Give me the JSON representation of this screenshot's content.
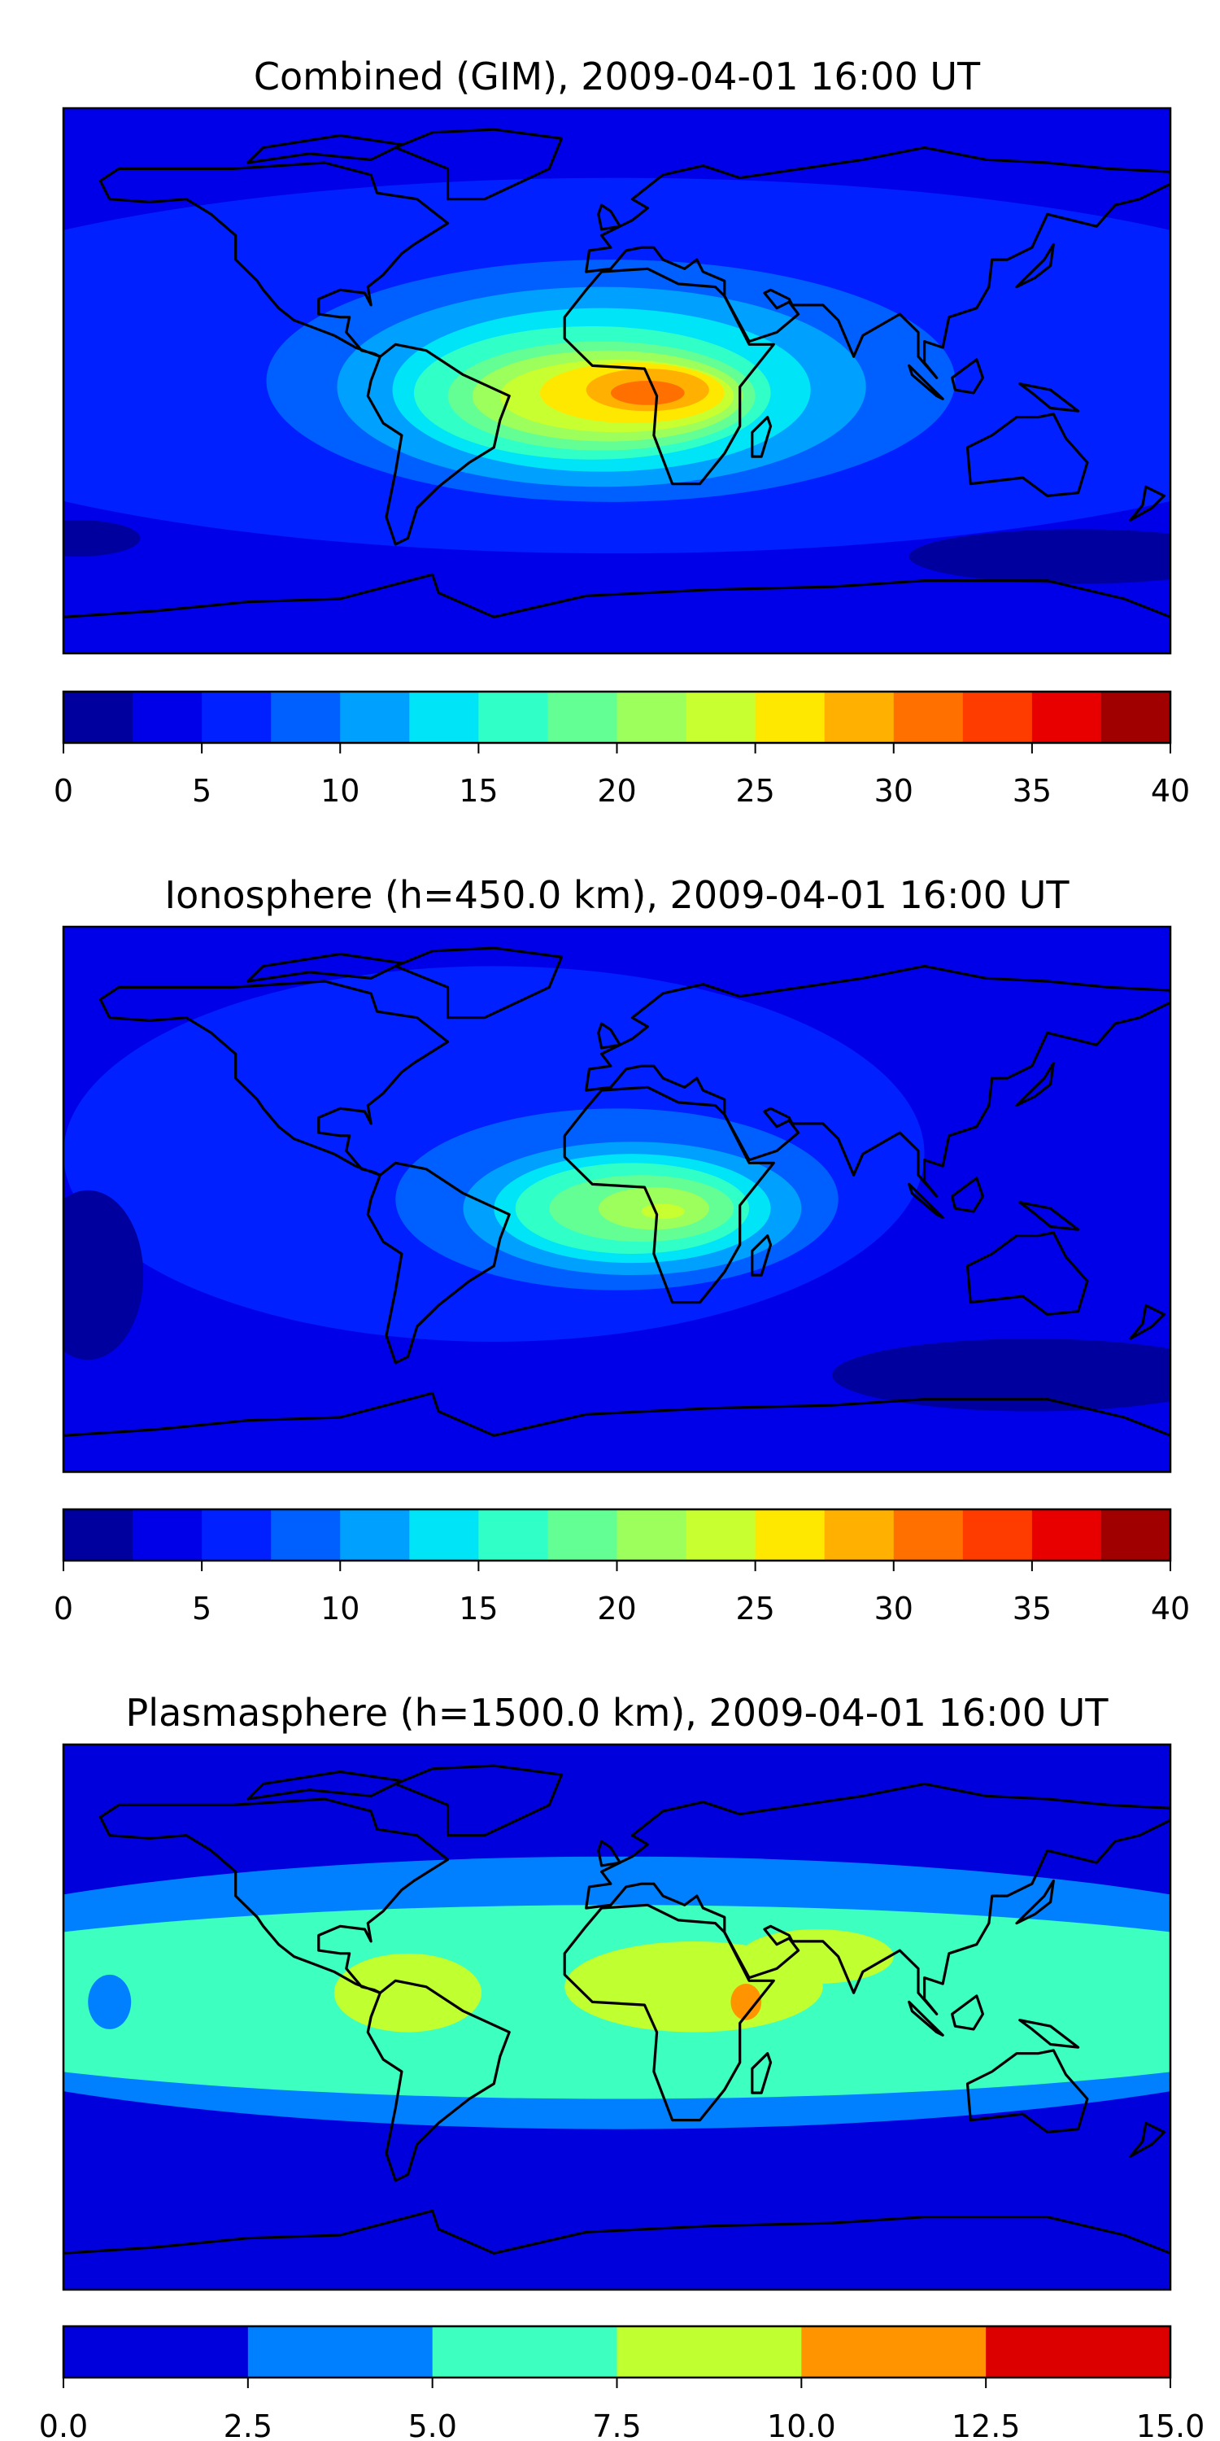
{
  "chart_data": [
    {
      "type": "heatmap",
      "subtype": "filled-contour-map",
      "title": "Combined (GIM), 2009-04-01 16:00 UT",
      "xlim": [
        -180,
        180
      ],
      "ylim": [
        -90,
        90
      ],
      "colorbar": {
        "levels": [
          0,
          2.5,
          5,
          7.5,
          10,
          12.5,
          15,
          17.5,
          20,
          22.5,
          25,
          27.5,
          30,
          32.5,
          35,
          37.5,
          40
        ],
        "colors": [
          "#00009f",
          "#0000e8",
          "#0020ff",
          "#0060ff",
          "#00a0ff",
          "#00e4f8",
          "#30ffc8",
          "#64ff94",
          "#9cff5c",
          "#c8ff30",
          "#ffe800",
          "#ffb000",
          "#ff7000",
          "#ff3c00",
          "#e80000",
          "#a00000"
        ],
        "ticks": [
          "0",
          "5",
          "10",
          "15",
          "20",
          "25",
          "30",
          "35",
          "40"
        ]
      },
      "base_level": 1,
      "regions": [
        {
          "level": 2,
          "lon": 0,
          "lat": 5,
          "rlon": 260,
          "rlat": 62
        },
        {
          "level": 0,
          "lon": 150,
          "lat": -58,
          "rlon": 55,
          "rlat": 9
        },
        {
          "level": 0,
          "lon": -175,
          "lat": -52,
          "rlon": 20,
          "rlat": 6
        },
        {
          "level": 3,
          "lon": -2,
          "lat": 0,
          "rlon": 112,
          "rlat": 40
        },
        {
          "level": 4,
          "lon": -5,
          "lat": -2,
          "rlon": 86,
          "rlat": 33
        },
        {
          "level": 5,
          "lon": -5,
          "lat": -3,
          "rlon": 68,
          "rlat": 27
        },
        {
          "level": 6,
          "lon": -8,
          "lat": -4,
          "rlon": 58,
          "rlat": 22
        },
        {
          "level": 7,
          "lon": -5,
          "lat": -5,
          "rlon": 50,
          "rlat": 18
        },
        {
          "level": 8,
          "lon": -3,
          "lat": -5,
          "rlon": 44,
          "rlat": 15
        },
        {
          "level": 9,
          "lon": 0,
          "lat": -5,
          "rlon": 38,
          "rlat": 12
        },
        {
          "level": 10,
          "lon": 5,
          "lat": -4,
          "rlon": 30,
          "rlat": 10
        },
        {
          "level": 11,
          "lon": 10,
          "lat": -3,
          "rlon": 20,
          "rlat": 7
        },
        {
          "level": 12,
          "lon": 10,
          "lat": -4,
          "rlon": 12,
          "rlat": 4
        }
      ]
    },
    {
      "type": "heatmap",
      "subtype": "filled-contour-map",
      "title": "Ionosphere  (h=450.0 km), 2009-04-01 16:00 UT",
      "xlim": [
        -180,
        180
      ],
      "ylim": [
        -90,
        90
      ],
      "colorbar": {
        "levels": [
          0,
          2.5,
          5,
          7.5,
          10,
          12.5,
          15,
          17.5,
          20,
          22.5,
          25,
          27.5,
          30,
          32.5,
          35,
          37.5,
          40
        ],
        "colors": [
          "#00009f",
          "#0000e8",
          "#0020ff",
          "#0060ff",
          "#00a0ff",
          "#00e4f8",
          "#30ffc8",
          "#64ff94",
          "#9cff5c",
          "#c8ff30",
          "#ffe800",
          "#ffb000",
          "#ff7000",
          "#ff3c00",
          "#e80000",
          "#a00000"
        ],
        "ticks": [
          "0",
          "5",
          "10",
          "15",
          "20",
          "25",
          "30",
          "35",
          "40"
        ]
      },
      "base_level": 1,
      "regions": [
        {
          "level": 2,
          "lon": -40,
          "lat": 15,
          "rlon": 140,
          "rlat": 62
        },
        {
          "level": 0,
          "lon": 135,
          "lat": -58,
          "rlon": 65,
          "rlat": 12
        },
        {
          "level": 0,
          "lon": -172,
          "lat": -25,
          "rlon": 18,
          "rlat": 28
        },
        {
          "level": 3,
          "lon": 0,
          "lat": 0,
          "rlon": 72,
          "rlat": 30
        },
        {
          "level": 4,
          "lon": 5,
          "lat": -3,
          "rlon": 55,
          "rlat": 22
        },
        {
          "level": 5,
          "lon": 5,
          "lat": -3,
          "rlon": 45,
          "rlat": 18
        },
        {
          "level": 6,
          "lon": 5,
          "lat": -3,
          "rlon": 38,
          "rlat": 15
        },
        {
          "level": 7,
          "lon": 8,
          "lat": -3,
          "rlon": 30,
          "rlat": 11
        },
        {
          "level": 8,
          "lon": 12,
          "lat": -3,
          "rlon": 18,
          "rlat": 7
        },
        {
          "level": 9,
          "lon": 15,
          "lat": -4,
          "rlon": 7,
          "rlat": 2.5
        }
      ]
    },
    {
      "type": "heatmap",
      "subtype": "filled-contour-map",
      "title": "Plasmasphere (h=1500.0 km), 2009-04-01 16:00 UT",
      "xlim": [
        -180,
        180
      ],
      "ylim": [
        -90,
        90
      ],
      "colorbar": {
        "levels": [
          0,
          2.5,
          5,
          7.5,
          10,
          12.5,
          15
        ],
        "colors": [
          "#0000dc",
          "#0080ff",
          "#3cffc0",
          "#c0ff30",
          "#ff9400",
          "#dc0000"
        ],
        "ticks": [
          "0.0",
          "2.5",
          "5.0",
          "7.5",
          "10.0",
          "12.5",
          "15.0"
        ]
      },
      "base_level": 0,
      "regions": [
        {
          "level": 1,
          "lon": 0,
          "lat": 8,
          "rlon": 260,
          "rlat": 45
        },
        {
          "level": 2,
          "lon": 0,
          "lat": 5,
          "rlon": 260,
          "rlat": 32
        },
        {
          "level": 1,
          "lon": -165,
          "lat": 5,
          "rlon": 7,
          "rlat": 9
        },
        {
          "level": 3,
          "lon": -68,
          "lat": 8,
          "rlon": 24,
          "rlat": 13
        },
        {
          "level": 3,
          "lon": 25,
          "lat": 10,
          "rlon": 42,
          "rlat": 15
        },
        {
          "level": 3,
          "lon": 65,
          "lat": 20,
          "rlon": 25,
          "rlat": 9
        },
        {
          "level": 4,
          "lon": 42,
          "lat": 5,
          "rlon": 5,
          "rlat": 6
        }
      ]
    }
  ]
}
